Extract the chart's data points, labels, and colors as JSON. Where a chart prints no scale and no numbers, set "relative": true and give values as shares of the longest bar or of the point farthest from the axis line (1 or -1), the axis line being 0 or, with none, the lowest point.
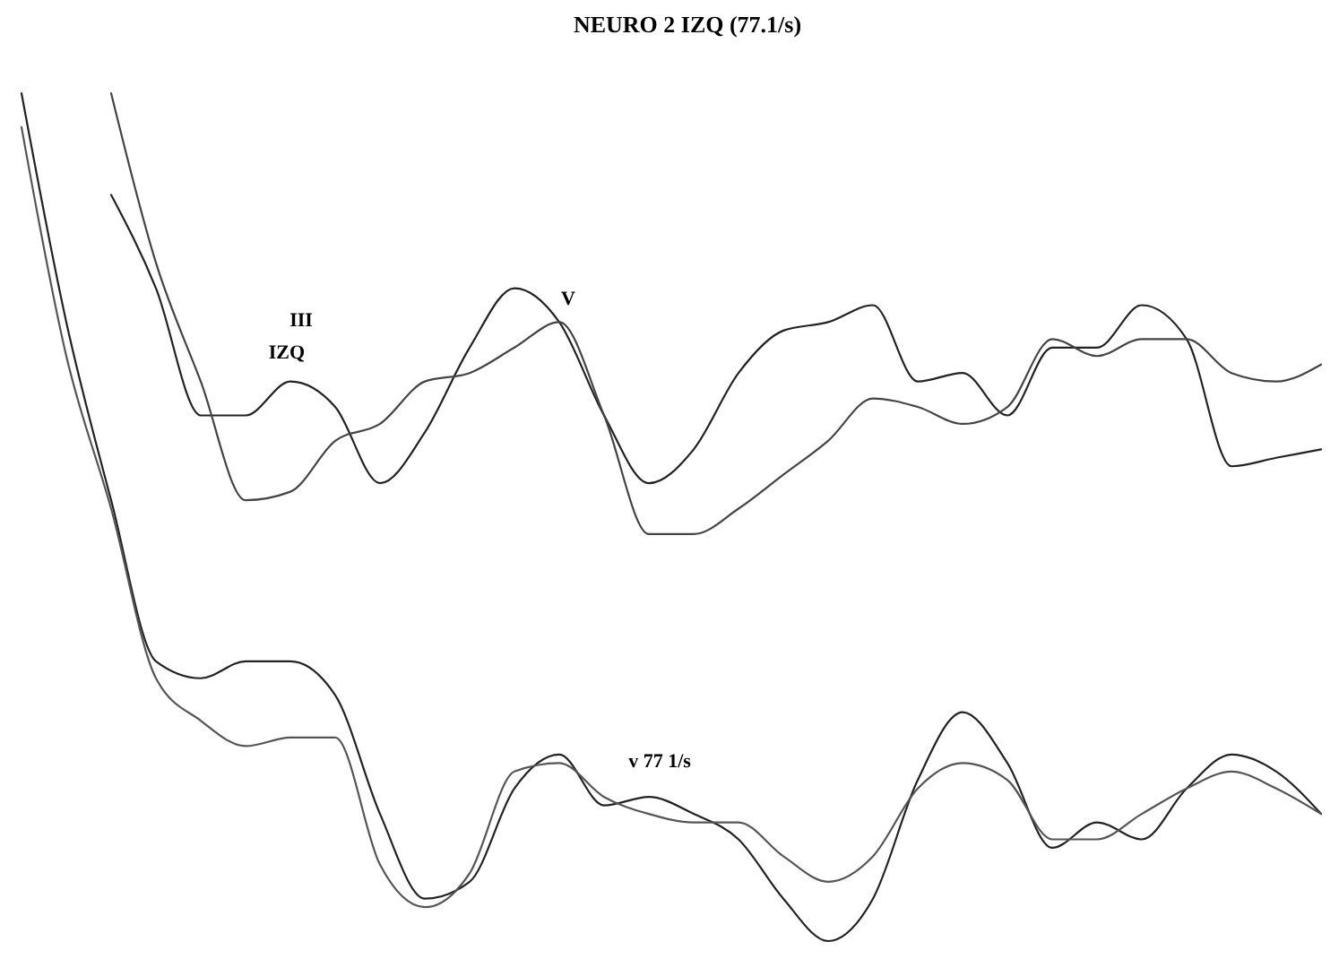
{
  "chart_data": {
    "type": "line",
    "title": "NEURO 2 IZQ (77.1/s)",
    "relative": true,
    "categories": [
      null,
      null,
      null,
      null,
      null,
      null,
      null,
      null,
      null,
      null,
      null,
      null,
      null,
      null,
      null,
      null,
      null,
      null,
      null,
      null,
      null,
      null,
      null,
      null,
      null,
      null,
      null,
      null,
      null,
      null
    ],
    "series": [
      {
        "color": "#222222",
        "values": [
          null,
          null,
          0.88,
          0.77,
          0.62,
          0.62,
          0.66,
          0.63,
          0.54,
          0.6,
          0.7,
          0.77,
          0.73,
          0.62,
          0.54,
          0.58,
          0.67,
          0.72,
          0.73,
          0.75,
          0.66,
          0.67,
          0.62,
          0.7,
          0.7,
          0.75,
          0.71,
          0.56,
          0.57,
          0.58
        ]
      },
      {
        "color": "#444444",
        "values": [
          null,
          null,
          1,
          0.8,
          0.66,
          0.52,
          0.53,
          0.59,
          0.61,
          0.66,
          0.67,
          0.7,
          0.73,
          0.62,
          0.48,
          0.48,
          0.51,
          0.55,
          0.59,
          0.64,
          0.63,
          0.61,
          0.63,
          0.71,
          0.69,
          0.71,
          0.71,
          0.67,
          0.66,
          0.68
        ]
      },
      {
        "color": "#222222",
        "values": [
          1,
          0.73,
          0.52,
          0.33,
          0.31,
          0.33,
          0.33,
          0.29,
          0.15,
          0.05,
          0.07,
          0.18,
          0.22,
          0.16,
          0.17,
          0.15,
          0.12,
          0.05,
          0.0,
          0.05,
          0.19,
          0.27,
          0.21,
          0.11,
          0.14,
          0.12,
          0.18,
          0.22,
          0.2,
          0.15
        ]
      },
      {
        "color": "#555555",
        "values": [
          0.96,
          0.69,
          0.51,
          0.31,
          0.26,
          0.23,
          0.24,
          0.24,
          0.09,
          0.04,
          0.08,
          0.2,
          0.21,
          0.17,
          0.15,
          0.14,
          0.14,
          0.1,
          0.07,
          0.1,
          0.18,
          0.21,
          0.19,
          0.12,
          0.12,
          0.15,
          0.18,
          0.2,
          0.18,
          0.15
        ]
      }
    ],
    "annotations": [
      "III",
      "IZQ",
      "V",
      "v 77 1/s"
    ]
  }
}
